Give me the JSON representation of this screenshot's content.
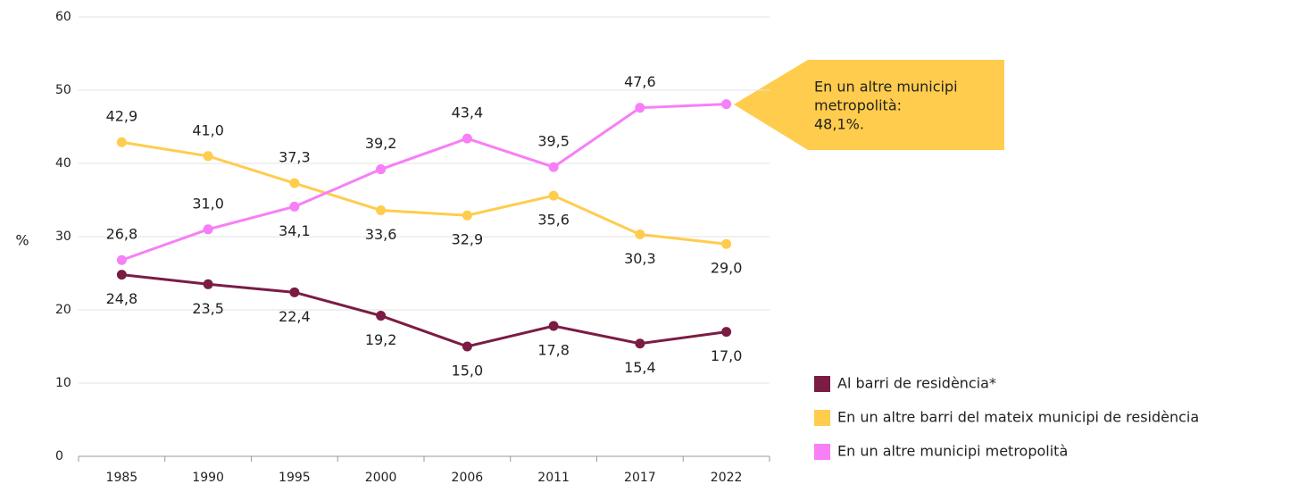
{
  "chart_data": {
    "type": "line",
    "categories": [
      "1985",
      "1990",
      "1995",
      "2000",
      "2006",
      "2011",
      "2017",
      "2022"
    ],
    "y_label": "%",
    "ylim": [
      0,
      60
    ],
    "yticks": [
      0,
      10,
      20,
      30,
      40,
      50,
      60
    ],
    "grid": true,
    "series": [
      {
        "name": "Al barri de residència*",
        "color": "#7b1c45",
        "values": [
          24.8,
          23.5,
          22.4,
          19.2,
          15.0,
          17.8,
          15.4,
          17.0
        ],
        "value_labels": [
          "24,8",
          "23,5",
          "22,4",
          "19,2",
          "15,0",
          "17,8",
          "15,4",
          "17,0"
        ]
      },
      {
        "name": "En un altre barri del mateix municipi de residència",
        "color": "#ffcc4d",
        "values": [
          42.9,
          41.0,
          37.3,
          33.6,
          32.9,
          35.6,
          30.3,
          29.0
        ],
        "value_labels": [
          "42,9",
          "41,0",
          "37,3",
          "33,6",
          "32,9",
          "35,6",
          "30,3",
          "29,0"
        ]
      },
      {
        "name": "En un altre municipi metropolità",
        "color": "#f77ff7",
        "values": [
          26.8,
          31.0,
          34.1,
          39.2,
          43.4,
          39.5,
          47.6,
          48.1
        ],
        "value_labels": [
          "26,8",
          "31,0",
          "34,1",
          "39,2",
          "43,4",
          "39,5",
          "47,6",
          null
        ]
      }
    ],
    "annotation": [
      "En un altre municipi",
      "metropolità:",
      "48,1%."
    ],
    "legend": "bottom-right"
  }
}
